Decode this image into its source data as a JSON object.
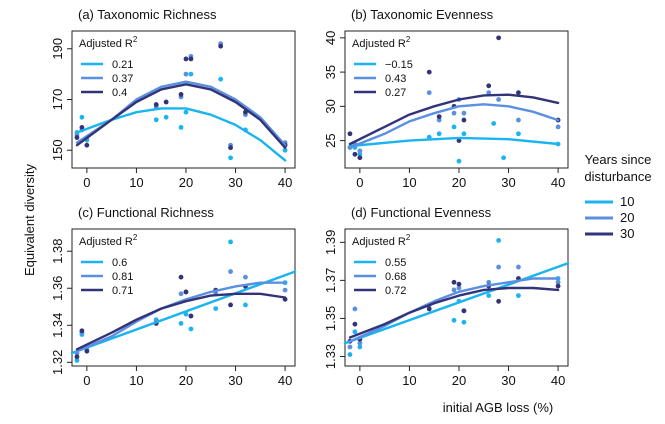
{
  "figure": {
    "ylabel": "Equivalent diversity",
    "xlabel": "initial AGB loss (%)",
    "legend_title_line1": "Years since",
    "legend_title_line2": "disturbance",
    "legend_items": [
      {
        "label": "10",
        "color": "#1ab4f0"
      },
      {
        "label": "20",
        "color": "#5b8fe0"
      },
      {
        "label": "30",
        "color": "#33337a"
      }
    ],
    "r2_label": "Adjusted R",
    "r2_sup": "2"
  },
  "chart_data": [
    {
      "type": "scatter",
      "title": "(a) Taxonomic Richness",
      "xlim": [
        -3,
        42
      ],
      "ylim": [
        143,
        197
      ],
      "xticks": [
        0,
        10,
        20,
        30,
        40
      ],
      "yticks": [
        150,
        170,
        190
      ],
      "r2": [
        "0.21",
        "0.37",
        "0.4"
      ],
      "series": [
        {
          "color": "#1ab4f0",
          "points": [
            [
              -2,
              157
            ],
            [
              -1,
              163
            ],
            [
              0,
              154
            ],
            [
              14,
              162
            ],
            [
              16,
              163
            ],
            [
              19,
              159
            ],
            [
              20,
              165
            ],
            [
              21,
              180
            ],
            [
              27,
              178
            ],
            [
              29,
              147
            ],
            [
              32,
              158
            ],
            [
              40,
              150
            ]
          ],
          "curve": [
            [
              -2,
              157
            ],
            [
              5,
              162
            ],
            [
              10,
              165
            ],
            [
              15,
              166.5
            ],
            [
              20,
              166.5
            ],
            [
              25,
              164
            ],
            [
              30,
              160
            ],
            [
              35,
              154
            ],
            [
              40,
              146
            ]
          ]
        },
        {
          "color": "#5b8fe0",
          "points": [
            [
              -2,
              156
            ],
            [
              -1,
              158
            ],
            [
              0,
              155
            ],
            [
              14,
              167
            ],
            [
              16,
              169
            ],
            [
              19,
              171
            ],
            [
              20,
              180
            ],
            [
              21,
              187
            ],
            [
              27,
              192
            ],
            [
              29,
              152
            ],
            [
              32,
              164
            ],
            [
              40,
              153
            ]
          ],
          "curve": [
            [
              -2,
              153
            ],
            [
              5,
              162
            ],
            [
              10,
              170
            ],
            [
              15,
              175
            ],
            [
              20,
              177
            ],
            [
              25,
              175
            ],
            [
              30,
              170
            ],
            [
              35,
              163
            ],
            [
              40,
              152
            ]
          ]
        },
        {
          "color": "#33337a",
          "points": [
            [
              -2,
              155
            ],
            [
              -1,
              159
            ],
            [
              0,
              152
            ],
            [
              14,
              168
            ],
            [
              16,
              169
            ],
            [
              19,
              172
            ],
            [
              20,
              186
            ],
            [
              21,
              186
            ],
            [
              27,
              191
            ],
            [
              29,
              151
            ],
            [
              32,
              165
            ],
            [
              40,
              152
            ]
          ],
          "curve": [
            [
              -2,
              152
            ],
            [
              5,
              162
            ],
            [
              10,
              169
            ],
            [
              15,
              174
            ],
            [
              20,
              176
            ],
            [
              25,
              174
            ],
            [
              30,
              169
            ],
            [
              35,
              162
            ],
            [
              40,
              151
            ]
          ]
        }
      ]
    },
    {
      "type": "scatter",
      "title": "(b) Taxonomic Evenness",
      "xlim": [
        -3,
        42
      ],
      "ylim": [
        21,
        41
      ],
      "xticks": [
        0,
        10,
        20,
        30,
        40
      ],
      "yticks": [
        25,
        30,
        35,
        40
      ],
      "r2": [
        "−0.15",
        "0.43",
        "0.27"
      ],
      "series": [
        {
          "color": "#1ab4f0",
          "points": [
            [
              -2,
              24
            ],
            [
              -1,
              24
            ],
            [
              0,
              23
            ],
            [
              14,
              25.5
            ],
            [
              16,
              26
            ],
            [
              19,
              27
            ],
            [
              20,
              22
            ],
            [
              21,
              26
            ],
            [
              27,
              27.5
            ],
            [
              29,
              22.5
            ],
            [
              32,
              26
            ],
            [
              40,
              24.5
            ]
          ],
          "curve": [
            [
              -2,
              24.2
            ],
            [
              10,
              25
            ],
            [
              20,
              25.4
            ],
            [
              30,
              25.2
            ],
            [
              40,
              24.5
            ]
          ]
        },
        {
          "color": "#5b8fe0",
          "points": [
            [
              -2,
              24
            ],
            [
              -1,
              24.5
            ],
            [
              0,
              23.5
            ],
            [
              14,
              32
            ],
            [
              16,
              28
            ],
            [
              19,
              29
            ],
            [
              20,
              31
            ],
            [
              21,
              29
            ],
            [
              26,
              32
            ],
            [
              28,
              31
            ],
            [
              32,
              28
            ],
            [
              40,
              27
            ]
          ],
          "curve": [
            [
              -2,
              24
            ],
            [
              5,
              26
            ],
            [
              10,
              27.8
            ],
            [
              15,
              29
            ],
            [
              20,
              30
            ],
            [
              25,
              30.3
            ],
            [
              30,
              30
            ],
            [
              35,
              29.2
            ],
            [
              40,
              28
            ]
          ]
        },
        {
          "color": "#33337a",
          "points": [
            [
              -2,
              26
            ],
            [
              -1,
              23
            ],
            [
              0,
              22.5
            ],
            [
              14,
              35
            ],
            [
              16,
              28.5
            ],
            [
              19,
              30
            ],
            [
              20,
              25
            ],
            [
              21,
              28
            ],
            [
              26,
              33
            ],
            [
              28,
              40
            ],
            [
              32,
              32
            ],
            [
              40,
              28
            ]
          ],
          "curve": [
            [
              -2,
              24.5
            ],
            [
              5,
              27
            ],
            [
              10,
              28.8
            ],
            [
              15,
              30
            ],
            [
              20,
              31
            ],
            [
              25,
              31.6
            ],
            [
              30,
              31.7
            ],
            [
              35,
              31.3
            ],
            [
              40,
              30.5
            ]
          ]
        }
      ]
    },
    {
      "type": "scatter",
      "title": "(c) Functional Richness",
      "xlim": [
        -3,
        42
      ],
      "ylim": [
        1.318,
        1.392
      ],
      "xticks": [
        0,
        10,
        20,
        30,
        40
      ],
      "yticks": [
        1.32,
        1.34,
        1.36,
        1.38
      ],
      "ytick_labels": [
        "1.32",
        "1.34",
        "1.36",
        "1.38"
      ],
      "r2": [
        "0.6",
        "0.81",
        "0.71"
      ],
      "series": [
        {
          "color": "#1ab4f0",
          "points": [
            [
              -2,
              1.321
            ],
            [
              -1,
              1.335
            ],
            [
              0,
              1.327
            ],
            [
              14,
              1.343
            ],
            [
              19,
              1.341
            ],
            [
              20,
              1.346
            ],
            [
              21,
              1.338
            ],
            [
              26,
              1.349
            ],
            [
              29,
              1.385
            ],
            [
              32,
              1.351
            ],
            [
              40,
              1.363
            ]
          ],
          "curve": [
            [
              -3,
              1.325
            ],
            [
              42,
              1.369
            ]
          ]
        },
        {
          "color": "#5b8fe0",
          "points": [
            [
              -2,
              1.325
            ],
            [
              -1,
              1.336
            ],
            [
              0,
              1.328
            ],
            [
              14,
              1.342
            ],
            [
              19,
              1.357
            ],
            [
              20,
              1.358
            ],
            [
              21,
              1.345
            ],
            [
              26,
              1.357
            ],
            [
              29,
              1.369
            ],
            [
              32,
              1.366
            ],
            [
              40,
              1.359
            ]
          ],
          "curve": [
            [
              -2,
              1.326
            ],
            [
              5,
              1.334
            ],
            [
              10,
              1.342
            ],
            [
              15,
              1.349
            ],
            [
              20,
              1.354
            ],
            [
              25,
              1.358
            ],
            [
              30,
              1.361
            ],
            [
              35,
              1.363
            ],
            [
              40,
              1.363
            ]
          ]
        },
        {
          "color": "#33337a",
          "points": [
            [
              -2,
              1.323
            ],
            [
              -1,
              1.337
            ],
            [
              0,
              1.326
            ],
            [
              14,
              1.341
            ],
            [
              19,
              1.366
            ],
            [
              20,
              1.358
            ],
            [
              21,
              1.345
            ],
            [
              26,
              1.359
            ],
            [
              29,
              1.351
            ],
            [
              32,
              1.361
            ],
            [
              40,
              1.354
            ]
          ],
          "curve": [
            [
              -2,
              1.327
            ],
            [
              5,
              1.336
            ],
            [
              10,
              1.343
            ],
            [
              15,
              1.349
            ],
            [
              20,
              1.353
            ],
            [
              25,
              1.356
            ],
            [
              30,
              1.357
            ],
            [
              35,
              1.357
            ],
            [
              40,
              1.355
            ]
          ]
        }
      ]
    },
    {
      "type": "scatter",
      "title": "(d) Functional Evenness",
      "xlim": [
        -3,
        42
      ],
      "ylim": [
        1.325,
        1.397
      ],
      "xticks": [
        0,
        10,
        20,
        30,
        40
      ],
      "yticks": [
        1.33,
        1.35,
        1.37,
        1.39
      ],
      "ytick_labels": [
        "1.33",
        "1.35",
        "1.37",
        "1.39"
      ],
      "r2": [
        "0.55",
        "0.68",
        "0.72"
      ],
      "series": [
        {
          "color": "#1ab4f0",
          "points": [
            [
              -2,
              1.331
            ],
            [
              -1,
              1.343
            ],
            [
              0,
              1.335
            ],
            [
              14,
              1.357
            ],
            [
              19,
              1.349
            ],
            [
              20,
              1.359
            ],
            [
              21,
              1.348
            ],
            [
              26,
              1.362
            ],
            [
              28,
              1.391
            ],
            [
              32,
              1.362
            ],
            [
              40,
              1.371
            ]
          ],
          "curve": [
            [
              -3,
              1.337
            ],
            [
              42,
              1.379
            ]
          ]
        },
        {
          "color": "#5b8fe0",
          "points": [
            [
              -2,
              1.335
            ],
            [
              -1,
              1.355
            ],
            [
              0,
              1.337
            ],
            [
              14,
              1.357
            ],
            [
              19,
              1.365
            ],
            [
              20,
              1.366
            ],
            [
              21,
              1.354
            ],
            [
              26,
              1.369
            ],
            [
              28,
              1.377
            ],
            [
              32,
              1.377
            ],
            [
              40,
              1.369
            ]
          ],
          "curve": [
            [
              -2,
              1.338
            ],
            [
              5,
              1.346
            ],
            [
              10,
              1.353
            ],
            [
              15,
              1.359
            ],
            [
              20,
              1.364
            ],
            [
              25,
              1.367
            ],
            [
              30,
              1.369
            ],
            [
              35,
              1.371
            ],
            [
              40,
              1.371
            ]
          ]
        },
        {
          "color": "#33337a",
          "points": [
            [
              -2,
              1.338
            ],
            [
              -1,
              1.347
            ],
            [
              0,
              1.339
            ],
            [
              14,
              1.355
            ],
            [
              19,
              1.369
            ],
            [
              20,
              1.368
            ],
            [
              21,
              1.354
            ],
            [
              26,
              1.367
            ],
            [
              28,
              1.359
            ],
            [
              32,
              1.371
            ],
            [
              40,
              1.367
            ]
          ],
          "curve": [
            [
              -2,
              1.34
            ],
            [
              5,
              1.347
            ],
            [
              10,
              1.353
            ],
            [
              15,
              1.358
            ],
            [
              20,
              1.362
            ],
            [
              25,
              1.365
            ],
            [
              30,
              1.366
            ],
            [
              35,
              1.366
            ],
            [
              40,
              1.365
            ]
          ]
        }
      ]
    }
  ]
}
